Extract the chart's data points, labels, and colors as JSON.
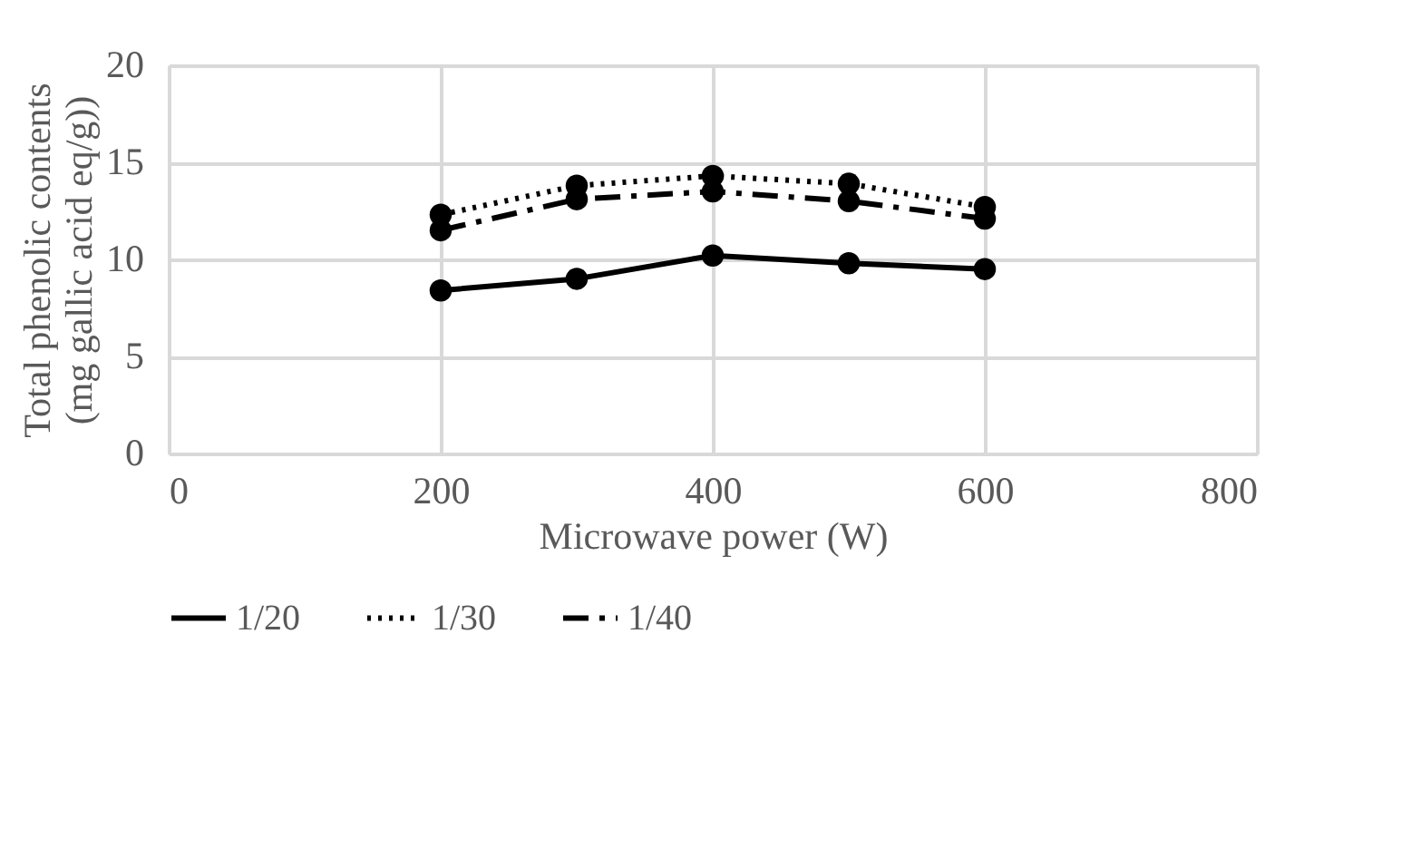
{
  "chart_data": {
    "type": "line",
    "xlabel": "Microwave power (W)",
    "ylabel": "Total phenolic contents (mg gallic acid eq/g))",
    "x": [
      200,
      300,
      400,
      500,
      600
    ],
    "series": [
      {
        "name": "1/20",
        "color": "#000000",
        "line_style": "solid",
        "values": [
          8.4,
          9.0,
          10.2,
          9.8,
          9.5
        ]
      },
      {
        "name": "1/30",
        "color": "#000000",
        "line_style": "dotted",
        "values": [
          12.3,
          13.8,
          14.3,
          13.9,
          12.7
        ]
      },
      {
        "name": "1/40",
        "color": "#000000",
        "line_style": "dashed",
        "values": [
          11.5,
          13.1,
          13.5,
          13.0,
          12.1
        ]
      }
    ],
    "xlim": [
      0,
      800
    ],
    "xticks": [
      0,
      200,
      400,
      600,
      800
    ],
    "ylim": [
      0,
      20
    ],
    "yticks": [
      0,
      5,
      10,
      15,
      20
    ],
    "grid": true,
    "legend": "bottom",
    "marker": "circle"
  }
}
